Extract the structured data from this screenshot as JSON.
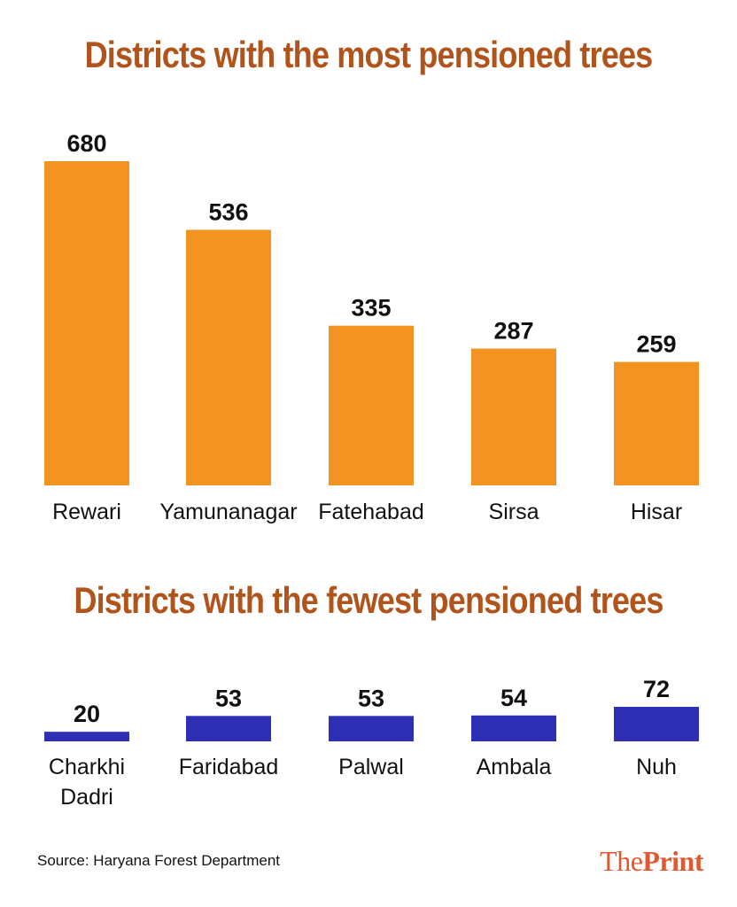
{
  "colors": {
    "title": "#b0541c",
    "top_bar": "#f39322",
    "bottom_bar": "#2e2fb5"
  },
  "chart_data": [
    {
      "type": "bar",
      "title": "Districts with the most pensioned trees",
      "categories": [
        "Rewari",
        "Yamunanagar",
        "Fatehabad",
        "Sirsa",
        "Hisar"
      ],
      "values": [
        680,
        536,
        335,
        287,
        259
      ],
      "xlabel": "",
      "ylabel": "",
      "ylim": [
        0,
        680
      ],
      "grid": false
    },
    {
      "type": "bar",
      "title": "Districts with the fewest pensioned trees",
      "categories": [
        "Charkhi Dadri",
        "Faridabad",
        "Palwal",
        "Ambala",
        "Nuh"
      ],
      "values": [
        20,
        53,
        53,
        54,
        72
      ],
      "xlabel": "",
      "ylabel": "",
      "ylim": [
        0,
        72
      ],
      "grid": false
    }
  ],
  "footer": {
    "source": "Source: Haryana Forest Department",
    "logo_the": "The",
    "logo_print": "Print"
  }
}
